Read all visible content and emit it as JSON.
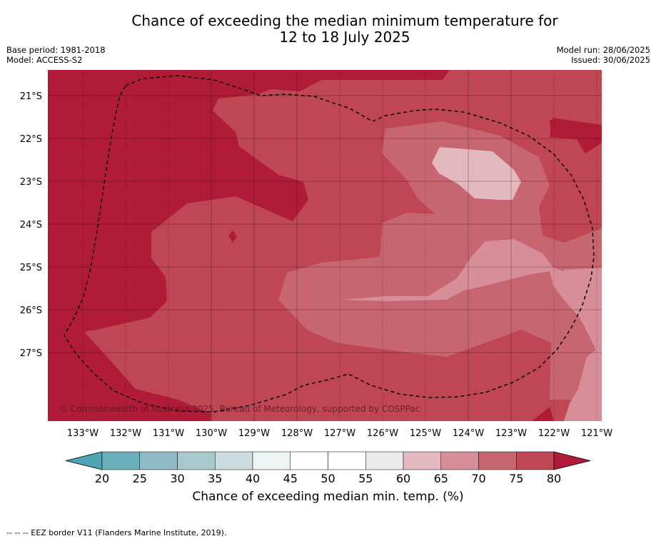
{
  "title_line1": "Chance of exceeding the median minimum temperature for",
  "title_line2": "12 to 18 July 2025",
  "base_period": "Base period: 1981-2018",
  "model": "Model: ACCESS-S2",
  "model_run": "Model run: 28/06/2025",
  "issued": "Issued: 30/06/2025",
  "copyright": "© Commonwealth of Australia 2025, Bureau of Meteorology, supported by COSPPac",
  "lat_labels": [
    "21°S",
    "22°S",
    "23°S",
    "24°S",
    "25°S",
    "26°S",
    "27°S"
  ],
  "lon_labels": [
    "133°W",
    "132°W",
    "131°W",
    "130°W",
    "129°W",
    "128°W",
    "127°W",
    "126°W",
    "125°W",
    "124°W",
    "123°W",
    "122°W",
    "121°W"
  ],
  "colorbar": {
    "ticks": [
      "20",
      "25",
      "30",
      "35",
      "40",
      "45",
      "50",
      "55",
      "60",
      "65",
      "70",
      "75",
      "80"
    ],
    "colors": [
      "#6aaebd",
      "#8dbac4",
      "#a9c8cd",
      "#cddcdf",
      "#eef3f4",
      "#ffffff",
      "#ffffff",
      "#ebebeb",
      "#e3b9bf",
      "#d88e98",
      "#c76670",
      "#bf4653"
    ],
    "under_color": "#4ea3b5",
    "over_color": "#b01c37",
    "label": "Chance of exceeding median min. temp. (%)"
  },
  "footnote": "-- -- -- EEZ border V11 (Flanders Marine Institute, 2019)."
}
